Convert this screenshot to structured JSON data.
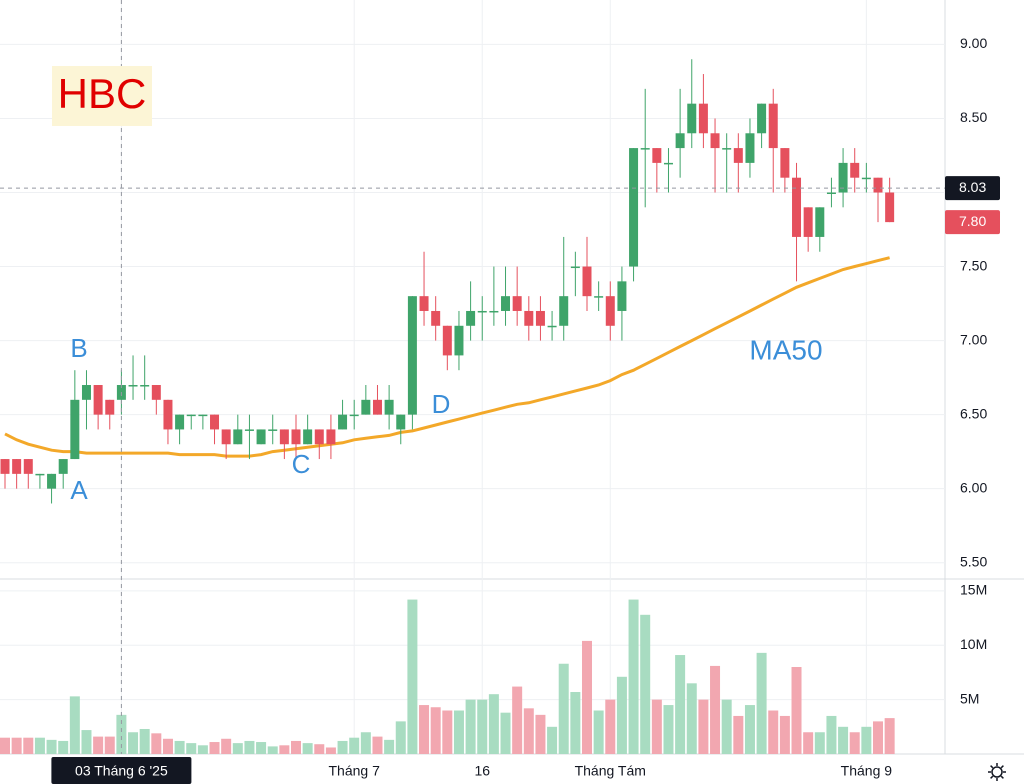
{
  "chart_data": {
    "type": "candlestick",
    "symbol": "HBC",
    "annotations": [
      "B",
      "A",
      "C",
      "D",
      "MA50"
    ],
    "categories": [
      null,
      null,
      null,
      null,
      null,
      null,
      null,
      null,
      null,
      null,
      "03 Tháng 6 '25",
      null,
      null,
      null,
      null,
      null,
      null,
      null,
      null,
      null,
      null,
      null,
      null,
      null,
      null,
      null,
      null,
      null,
      null,
      null,
      "Tháng 7",
      null,
      null,
      null,
      null,
      null,
      null,
      null,
      null,
      null,
      null,
      "16",
      null,
      null,
      null,
      null,
      null,
      null,
      null,
      null,
      null,
      null,
      "Tháng Tám",
      null,
      null,
      null,
      null,
      null,
      null,
      null,
      null,
      null,
      null,
      null,
      null,
      null,
      null,
      null,
      null,
      null,
      null,
      null,
      null,
      null,
      "Tháng 9",
      null,
      null
    ],
    "open": [
      6.2,
      6.2,
      6.2,
      6.1,
      6.0,
      6.1,
      6.2,
      6.6,
      6.7,
      6.6,
      6.6,
      6.7,
      6.7,
      6.7,
      6.6,
      6.4,
      6.5,
      6.5,
      6.5,
      6.4,
      6.3,
      6.4,
      6.3,
      6.4,
      6.4,
      6.4,
      6.3,
      6.4,
      6.4,
      6.4,
      6.5,
      6.5,
      6.6,
      6.5,
      6.4,
      6.5,
      7.3,
      7.2,
      7.1,
      6.9,
      7.1,
      7.2,
      7.2,
      7.2,
      7.3,
      7.2,
      7.2,
      7.1,
      7.1,
      7.5,
      7.5,
      7.3,
      7.3,
      7.2,
      7.5,
      8.3,
      8.3,
      8.2,
      8.3,
      8.4,
      8.6,
      8.4,
      8.3,
      8.3,
      8.2,
      8.4,
      8.6,
      8.3,
      8.1,
      7.9,
      7.7,
      8.0,
      8.0,
      8.2,
      8.1,
      8.1,
      8.0
    ],
    "high": [
      6.2,
      6.2,
      6.2,
      6.1,
      6.1,
      6.2,
      6.8,
      6.8,
      6.7,
      6.6,
      6.8,
      6.9,
      6.9,
      6.7,
      6.6,
      6.5,
      6.5,
      6.5,
      6.5,
      6.4,
      6.5,
      6.5,
      6.4,
      6.5,
      6.4,
      6.5,
      6.5,
      6.4,
      6.5,
      6.6,
      6.6,
      6.7,
      6.7,
      6.7,
      6.5,
      7.3,
      7.6,
      7.3,
      7.1,
      7.2,
      7.4,
      7.3,
      7.5,
      7.5,
      7.5,
      7.3,
      7.3,
      7.2,
      7.7,
      7.6,
      7.7,
      7.4,
      7.4,
      7.5,
      8.3,
      8.7,
      8.3,
      8.3,
      8.7,
      8.9,
      8.8,
      8.5,
      8.4,
      8.4,
      8.5,
      8.6,
      8.7,
      8.3,
      8.2,
      7.9,
      7.9,
      8.1,
      8.3,
      8.3,
      8.2,
      8.1,
      8.1
    ],
    "low": [
      6.0,
      6.0,
      6.0,
      6.0,
      5.9,
      6.0,
      6.2,
      6.4,
      6.4,
      6.4,
      6.5,
      6.6,
      6.6,
      6.5,
      6.3,
      6.3,
      6.4,
      6.4,
      6.3,
      6.2,
      6.3,
      6.2,
      6.3,
      6.3,
      6.2,
      6.2,
      6.3,
      6.2,
      6.2,
      6.4,
      6.4,
      6.5,
      6.5,
      6.4,
      6.3,
      6.4,
      7.1,
      7.0,
      6.8,
      6.8,
      7.0,
      7.0,
      7.1,
      7.1,
      7.1,
      7.0,
      7.0,
      7.0,
      7.0,
      7.3,
      7.2,
      7.2,
      7.0,
      7.0,
      7.4,
      7.9,
      8.0,
      8.0,
      8.1,
      8.3,
      8.3,
      8.0,
      8.0,
      8.0,
      8.1,
      8.3,
      8.0,
      8.0,
      7.4,
      7.6,
      7.6,
      7.9,
      7.9,
      8.0,
      8.0,
      7.8,
      7.8
    ],
    "close": [
      6.1,
      6.1,
      6.1,
      6.1,
      6.1,
      6.2,
      6.6,
      6.7,
      6.5,
      6.5,
      6.7,
      6.7,
      6.7,
      6.6,
      6.4,
      6.5,
      6.5,
      6.5,
      6.4,
      6.3,
      6.4,
      6.4,
      6.4,
      6.4,
      6.3,
      6.3,
      6.4,
      6.3,
      6.3,
      6.5,
      6.5,
      6.6,
      6.5,
      6.6,
      6.5,
      7.3,
      7.2,
      7.1,
      6.9,
      7.1,
      7.2,
      7.2,
      7.2,
      7.3,
      7.2,
      7.1,
      7.1,
      7.1,
      7.3,
      7.5,
      7.3,
      7.3,
      7.1,
      7.4,
      8.3,
      8.3,
      8.2,
      8.2,
      8.4,
      8.6,
      8.4,
      8.3,
      8.3,
      8.2,
      8.4,
      8.6,
      8.3,
      8.1,
      7.7,
      7.7,
      7.9,
      8.0,
      8.2,
      8.1,
      8.1,
      8.0,
      7.8
    ],
    "ma": [
      6.37,
      6.33,
      6.3,
      6.28,
      6.26,
      6.25,
      6.25,
      6.24,
      6.24,
      6.24,
      6.24,
      6.24,
      6.24,
      6.24,
      6.24,
      6.23,
      6.23,
      6.23,
      6.23,
      6.22,
      6.22,
      6.22,
      6.23,
      6.25,
      6.26,
      6.27,
      6.28,
      6.29,
      6.3,
      6.31,
      6.33,
      6.34,
      6.35,
      6.36,
      6.38,
      6.39,
      6.41,
      6.43,
      6.45,
      6.47,
      6.49,
      6.51,
      6.53,
      6.55,
      6.57,
      6.58,
      6.6,
      6.62,
      6.64,
      6.66,
      6.68,
      6.7,
      6.73,
      6.77,
      6.8,
      6.84,
      6.88,
      6.92,
      6.96,
      7.0,
      7.04,
      7.08,
      7.12,
      7.16,
      7.2,
      7.24,
      7.28,
      7.32,
      7.36,
      7.39,
      7.42,
      7.45,
      7.48,
      7.5,
      7.52,
      7.54,
      7.56
    ],
    "volume": [
      1500000,
      1500000,
      1500000,
      1500000,
      1300000,
      1200000,
      5300000,
      2200000,
      1600000,
      1600000,
      3600000,
      2000000,
      2300000,
      1900000,
      1400000,
      1200000,
      1000000,
      800000,
      1100000,
      1400000,
      1000000,
      1200000,
      1100000,
      700000,
      800000,
      1200000,
      1000000,
      900000,
      600000,
      1200000,
      1500000,
      2000000,
      1600000,
      1300000,
      3000000,
      14200000,
      4500000,
      4300000,
      4000000,
      4000000,
      5000000,
      5000000,
      5500000,
      3800000,
      6200000,
      4200000,
      3600000,
      2500000,
      8300000,
      5700000,
      10400000,
      4000000,
      5000000,
      7100000,
      14200000,
      12800000,
      5000000,
      4500000,
      9100000,
      6500000,
      5000000,
      8100000,
      5000000,
      3500000,
      4500000,
      9300000,
      4000000,
      3500000,
      8000000,
      2000000,
      2000000,
      3500000,
      2500000,
      2000000,
      2500000,
      3000000,
      3300000
    ],
    "up_color": "#3fa46a",
    "down_color": "#e5505d",
    "volume_up_color": "#a8dcc1",
    "volume_down_color": "#f2a7b0",
    "ma_color": "#f3a829",
    "ylim": [
      5.39,
      9.3
    ],
    "yticks": [
      {
        "value": 5.5,
        "label": "5.50"
      },
      {
        "value": 6,
        "label": "6.00"
      },
      {
        "value": 6.5,
        "label": "6.50"
      },
      {
        "value": 7,
        "label": "7.00"
      },
      {
        "value": 7.5,
        "label": "7.50"
      },
      {
        "value": 8,
        "label": "8.00"
      },
      {
        "value": 8.5,
        "label": "8.50"
      },
      {
        "value": 9,
        "label": "9.00"
      }
    ],
    "volume_ylim": [
      0,
      16000000
    ],
    "volume_yticks": [
      {
        "value": 5000000,
        "label": "5M"
      },
      {
        "value": 10000000,
        "label": "10M"
      },
      {
        "value": 15000000,
        "label": "15M"
      }
    ],
    "crosshair_price": {
      "value": 8.03,
      "label": "8.03"
    },
    "crosshair_x": 10,
    "last_price": {
      "value": 7.8,
      "label": "7.80"
    }
  }
}
